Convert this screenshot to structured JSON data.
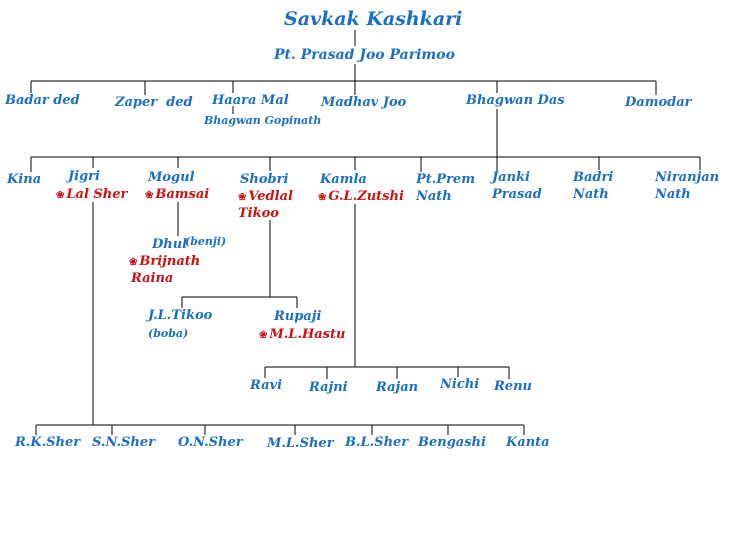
{
  "title": "Savkak Kashkari",
  "gen1": "Pt. Prasad Joo Parimoo",
  "gen2": {
    "badar": "Badar ded",
    "zaper": "Zaper  ded",
    "haara": "Haara Mal",
    "haara_note": "Bhagwan Gopinath",
    "madhav": "Madhav Joo",
    "bhagwan": "Bhagwan Das",
    "damodar": "Damodar"
  },
  "gen3": {
    "kina": "Kina",
    "jigri": "Jigri",
    "jigri_spouse": "Lal Sher",
    "mogul": "Mogul",
    "mogul_spouse": "Bamsai",
    "shobri": "Shobri",
    "shobri_spouse_1": "Vedlal",
    "shobri_spouse_2": "Tikoo",
    "kamla": "Kamla",
    "kamla_spouse": "G.L.Zutshi",
    "prem_1": "Pt.Prem",
    "prem_2": "Nath",
    "janki_1": "Janki",
    "janki_2": "Prasad",
    "badri_1": "Badri",
    "badri_2": "Nath",
    "niranjan_1": "Niranjan",
    "niranjan_2": "Nath"
  },
  "mogul_branch": {
    "dhul": "Dhul",
    "dhul_note": "(benji)",
    "dhul_spouse_1": "Brijnath",
    "dhul_spouse_2": "Raina"
  },
  "shobri_branch": {
    "jl": "J.L.Tikoo",
    "jl_note": "(boba)",
    "rupaji": "Rupaji",
    "rupaji_spouse": "M.L.Hastu"
  },
  "kamla_children": [
    "Ravi",
    "Rajni",
    "Rajan",
    "Nichi",
    "Renu"
  ],
  "jigri_children": [
    "R.K.Sher",
    "S.N.Sher",
    "O.N.Sher",
    "M.L.Sher",
    "B.L.Sher",
    "Bengashi",
    "Kanta"
  ],
  "colors": {
    "person": "#1a6fc4",
    "spouse": "#cc1111",
    "line": "#000000"
  },
  "spouse_marker_icon": "flower-icon"
}
